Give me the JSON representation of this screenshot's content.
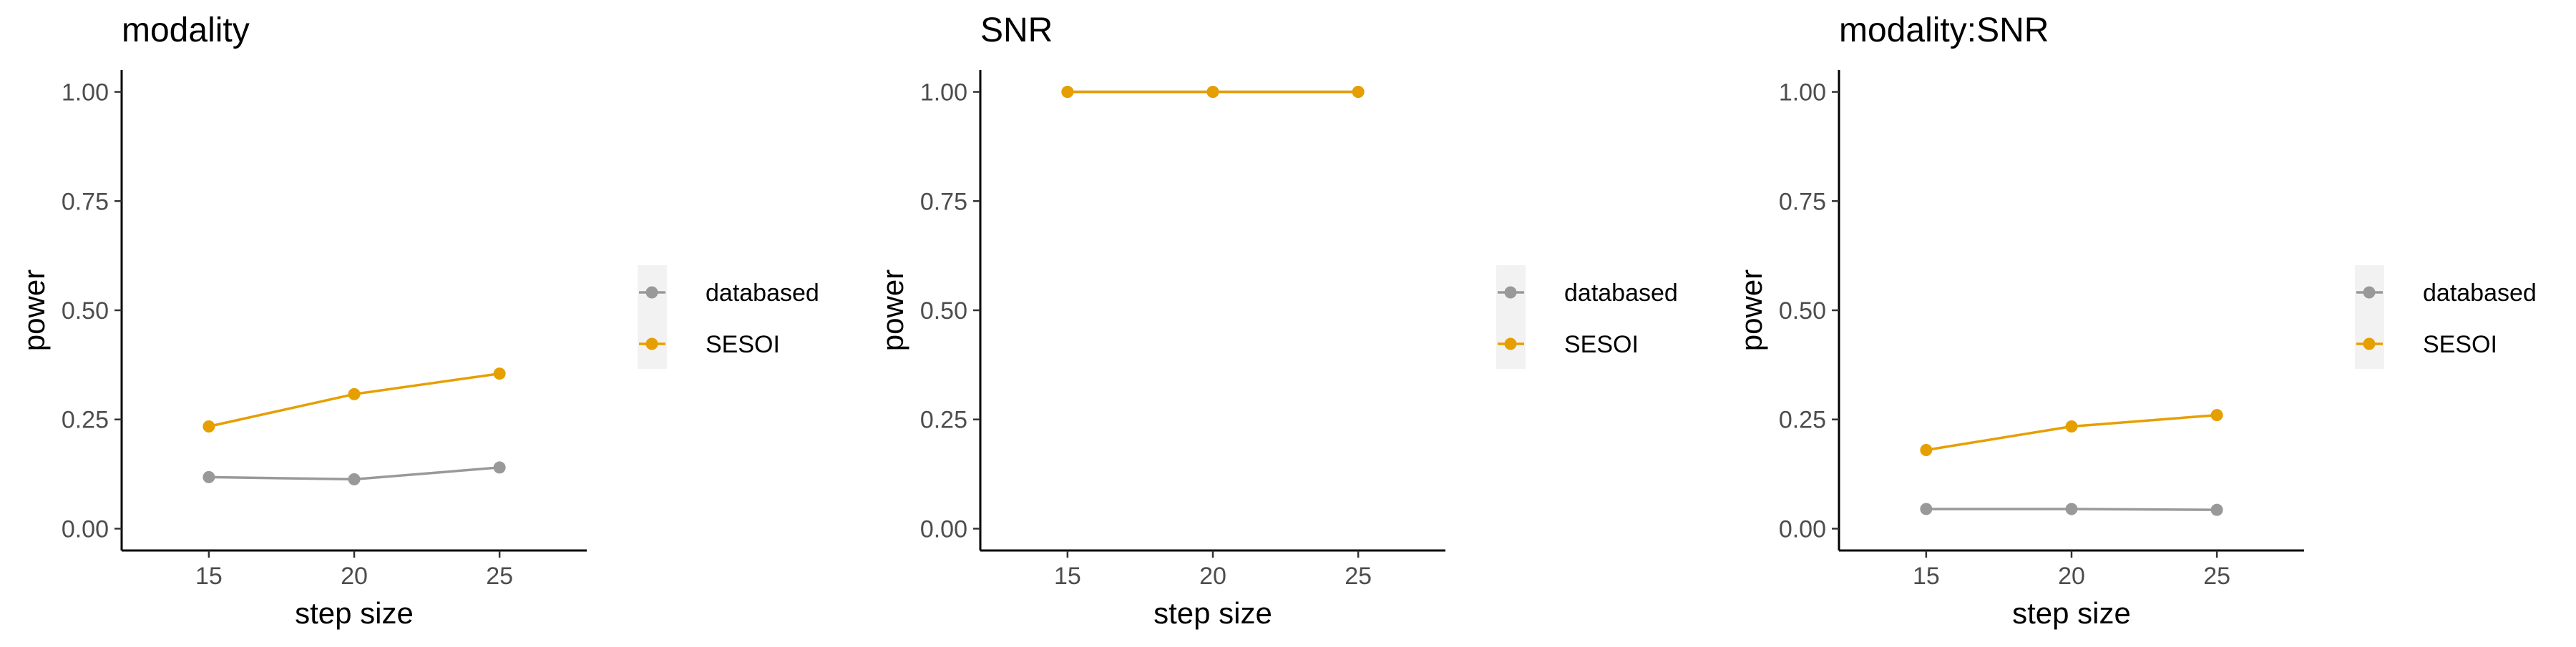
{
  "chart_data": [
    {
      "type": "line",
      "title": "modality",
      "xlabel": "step size",
      "ylabel": "power",
      "x": [
        15,
        20,
        25
      ],
      "xlim": [
        12,
        28
      ],
      "ylim": [
        -0.05,
        1.05
      ],
      "xticks": [
        "15",
        "20",
        "25"
      ],
      "yticks": [
        "0.00",
        "0.25",
        "0.50",
        "0.75",
        "1.00"
      ],
      "grid": false,
      "legend": "right",
      "series": [
        {
          "name": "databased",
          "color": "#999999",
          "values": [
            0.118,
            0.113,
            0.14
          ]
        },
        {
          "name": "SESOI",
          "color": "#E69F00",
          "values": [
            0.234,
            0.308,
            0.355
          ]
        }
      ]
    },
    {
      "type": "line",
      "title": "SNR",
      "xlabel": "step size",
      "ylabel": "power",
      "x": [
        15,
        20,
        25
      ],
      "xlim": [
        12,
        28
      ],
      "ylim": [
        -0.05,
        1.05
      ],
      "xticks": [
        "15",
        "20",
        "25"
      ],
      "yticks": [
        "0.00",
        "0.25",
        "0.50",
        "0.75",
        "1.00"
      ],
      "grid": false,
      "legend": "right",
      "series": [
        {
          "name": "databased",
          "color": "#999999",
          "values": [
            1.0,
            1.0,
            1.0
          ]
        },
        {
          "name": "SESOI",
          "color": "#E69F00",
          "values": [
            1.0,
            1.0,
            1.0
          ]
        }
      ]
    },
    {
      "type": "line",
      "title": "modality:SNR",
      "xlabel": "step size",
      "ylabel": "power",
      "x": [
        15,
        20,
        25
      ],
      "xlim": [
        12,
        28
      ],
      "ylim": [
        -0.05,
        1.05
      ],
      "xticks": [
        "15",
        "20",
        "25"
      ],
      "yticks": [
        "0.00",
        "0.25",
        "0.50",
        "0.75",
        "1.00"
      ],
      "grid": false,
      "legend": "right",
      "series": [
        {
          "name": "databased",
          "color": "#999999",
          "values": [
            0.045,
            0.045,
            0.043
          ]
        },
        {
          "name": "SESOI",
          "color": "#E69F00",
          "values": [
            0.18,
            0.234,
            0.26
          ]
        }
      ]
    }
  ]
}
